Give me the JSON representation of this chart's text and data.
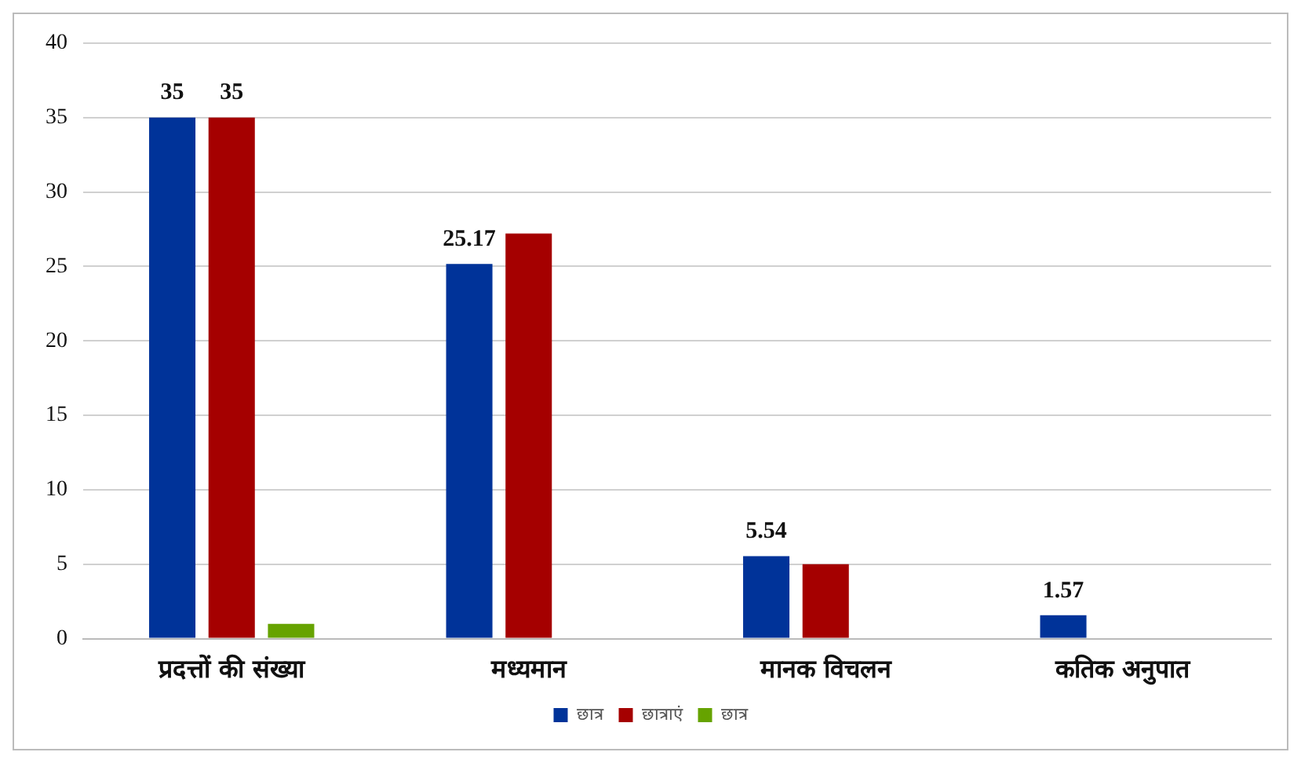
{
  "chart_data": {
    "type": "bar",
    "categories": [
      "प्रदत्तों की संख्या",
      "मध्यमान",
      "मानक विचलन",
      "कतिक अनुपात"
    ],
    "series": [
      {
        "name": "छात्र",
        "color": "#003399",
        "values": [
          35,
          25.17,
          5.54,
          1.57
        ],
        "value_labels": [
          "35",
          "25.17",
          "5.54",
          "1.57"
        ]
      },
      {
        "name": "छात्राएं",
        "color": "#a50000",
        "values": [
          35,
          27.2,
          5.0,
          null
        ],
        "value_labels": [
          "35",
          null,
          null,
          null
        ]
      },
      {
        "name": "छात्र",
        "color": "#66a300",
        "values": [
          1,
          null,
          null,
          null
        ]
      }
    ],
    "ylim": [
      0,
      40
    ],
    "yticks": [
      0,
      5,
      10,
      15,
      20,
      25,
      30,
      35,
      40
    ],
    "grid": "y",
    "legend": "bottom"
  }
}
